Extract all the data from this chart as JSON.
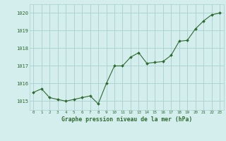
{
  "x": [
    0,
    1,
    2,
    3,
    4,
    5,
    6,
    7,
    8,
    9,
    10,
    11,
    12,
    13,
    14,
    15,
    16,
    17,
    18,
    19,
    20,
    21,
    22,
    23
  ],
  "y": [
    1015.5,
    1015.7,
    1015.2,
    1015.1,
    1015.0,
    1015.1,
    1015.2,
    1015.3,
    1014.85,
    1016.0,
    1017.0,
    1017.0,
    1017.5,
    1017.75,
    1017.15,
    1017.2,
    1017.25,
    1017.6,
    1018.4,
    1018.45,
    1019.1,
    1019.55,
    1019.9,
    1020.0
  ],
  "line_color": "#2d6a2d",
  "marker_color": "#2d6a2d",
  "bg_color": "#d4eeee",
  "grid_color": "#aacfcf",
  "xlabel": "Graphe pression niveau de la mer (hPa)",
  "xlabel_color": "#2d6a2d",
  "tick_color": "#2d6a2d",
  "ylim": [
    1014.5,
    1020.5
  ],
  "yticks": [
    1015,
    1016,
    1017,
    1018,
    1019,
    1020
  ],
  "xlim": [
    -0.5,
    23.5
  ],
  "xticks": [
    0,
    1,
    2,
    3,
    4,
    5,
    6,
    7,
    8,
    9,
    10,
    11,
    12,
    13,
    14,
    15,
    16,
    17,
    18,
    19,
    20,
    21,
    22,
    23
  ]
}
